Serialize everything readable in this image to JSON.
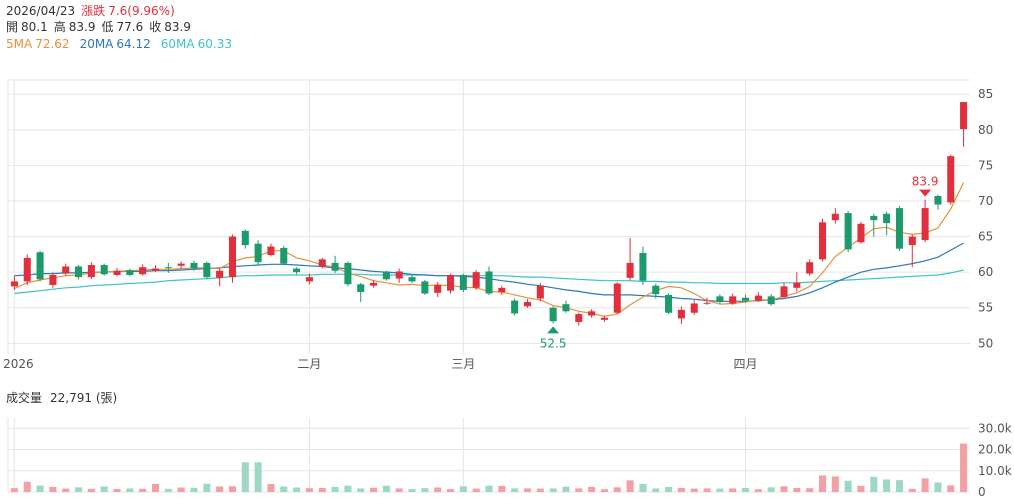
{
  "colors": {
    "up": "#e0303e",
    "down": "#1d9a6c",
    "ma5": "#e8913a",
    "ma20": "#2f78b7",
    "ma60": "#3cc3c8",
    "vol_up": "#f2a0a4",
    "vol_down": "#9ed8c4",
    "grid": "#e6e6e6",
    "muted": "#999999"
  },
  "header": {
    "date": "2026/04/23",
    "change_label": "漲跌",
    "change_value": "7.6(9.96%)",
    "open_label": "開",
    "open_value": "80.1",
    "high_label": "高",
    "high_value": "83.9",
    "low_label": "低",
    "low_value": "77.6",
    "close_label": "收",
    "close_value": "83.9",
    "ma5_label": "5MA",
    "ma5_value": "72.62",
    "ma20_label": "20MA",
    "ma20_value": "64.12",
    "ma60_label": "60MA",
    "ma60_value": "60.33"
  },
  "volume_header": {
    "label": "成交量",
    "value": "22,791 (張)"
  },
  "chart_data": {
    "type": "candlestick",
    "ylim": [
      48.5,
      87
    ],
    "price_ticks": [
      50,
      55,
      60,
      65,
      70,
      75,
      80,
      85
    ],
    "x_labels": [
      {
        "index": 0,
        "text": "2026"
      },
      {
        "index": 23,
        "text": "二月"
      },
      {
        "index": 35,
        "text": "三月"
      },
      {
        "index": 57,
        "text": "四月"
      }
    ],
    "max_marker": {
      "index": 71,
      "value": "83.9"
    },
    "min_marker": {
      "index": 42,
      "value": "52.5"
    },
    "candles": [
      [
        58,
        58.7,
        57.5,
        59.5
      ],
      [
        58.7,
        62,
        58.2,
        62.5
      ],
      [
        62.8,
        59,
        58.7,
        63
      ],
      [
        58.2,
        59.6,
        57.8,
        60
      ],
      [
        59.8,
        60.8,
        59.5,
        61.2
      ],
      [
        60.8,
        59.3,
        59,
        61
      ],
      [
        59.3,
        61,
        59,
        61.4
      ],
      [
        61,
        59.7,
        59.5,
        61.2
      ],
      [
        59.6,
        60.2,
        59.4,
        60.6
      ],
      [
        60.3,
        59.6,
        59.4,
        60.5
      ],
      [
        59.7,
        60.7,
        59.5,
        61.1
      ],
      [
        60.2,
        60.5,
        60,
        61
      ],
      [
        60.7,
        60.6,
        59.9,
        61.3
      ],
      [
        60.9,
        61.2,
        60.5,
        61.5
      ],
      [
        61.3,
        60.5,
        60.2,
        61.6
      ],
      [
        61.3,
        59.3,
        59,
        61.5
      ],
      [
        59.2,
        60.2,
        58,
        60.6
      ],
      [
        59.3,
        65,
        58.5,
        65.3
      ],
      [
        65.8,
        63.8,
        63.3,
        66
      ],
      [
        64,
        61.4,
        61,
        64.5
      ],
      [
        62.4,
        63.6,
        62.2,
        64
      ],
      [
        63.4,
        61.2,
        61,
        63.7
      ],
      [
        60.5,
        60,
        59.7,
        60.7
      ],
      [
        58.7,
        59.3,
        58.3,
        59.8
      ],
      [
        60.8,
        61.8,
        60.5,
        62
      ],
      [
        61.3,
        60.2,
        59.9,
        62.3
      ],
      [
        61.3,
        58.3,
        58,
        61.5
      ],
      [
        58.3,
        57.2,
        55.8,
        58.5
      ],
      [
        58.1,
        58.5,
        57.8,
        58.9
      ],
      [
        60.1,
        59,
        58.8,
        60.2
      ],
      [
        59.1,
        60.1,
        58.5,
        60.5
      ],
      [
        59.3,
        58.7,
        58.5,
        59.6
      ],
      [
        58.7,
        57,
        56.8,
        58.9
      ],
      [
        57.1,
        58.2,
        56.5,
        58.6
      ],
      [
        57.4,
        59.6,
        57,
        59.8
      ],
      [
        59.6,
        57.5,
        57.2,
        59.8
      ],
      [
        57.8,
        60,
        57.5,
        60.3
      ],
      [
        60.1,
        57,
        56.8,
        60.8
      ],
      [
        57.2,
        57.8,
        56.8,
        58.1
      ],
      [
        56,
        54.2,
        53.9,
        56.3
      ],
      [
        55.2,
        55.8,
        55,
        56.2
      ],
      [
        56.3,
        58.1,
        55.9,
        58.5
      ],
      [
        55,
        53.1,
        52.8,
        55.2
      ],
      [
        55.5,
        54.5,
        54.3,
        56
      ],
      [
        53,
        54.1,
        52.5,
        54.3
      ],
      [
        53.9,
        54.5,
        53.6,
        54.8
      ],
      [
        53.3,
        53.6,
        53,
        53.9
      ],
      [
        54.3,
        58.4,
        54.1,
        58.6
      ],
      [
        59.2,
        61.3,
        58.8,
        64.8
      ],
      [
        62.7,
        58.8,
        58.2,
        63.6
      ],
      [
        58.1,
        56.9,
        56.3,
        58.4
      ],
      [
        56.8,
        54.3,
        54.1,
        57
      ],
      [
        53.5,
        54.7,
        52.7,
        55.2
      ],
      [
        54.3,
        55.6,
        54,
        56.1
      ],
      [
        55.6,
        55.7,
        55.4,
        56.4
      ],
      [
        56.6,
        55.8,
        55.6,
        56.9
      ],
      [
        55.6,
        56.6,
        55.4,
        57
      ],
      [
        56.4,
        56,
        55.7,
        56.8
      ],
      [
        56,
        56.7,
        55.8,
        57.2
      ],
      [
        56.6,
        55.5,
        55.3,
        56.9
      ],
      [
        56.5,
        58,
        56.3,
        58.5
      ],
      [
        57.8,
        58.5,
        57.3,
        60
      ],
      [
        59.8,
        61.4,
        59.5,
        61.8
      ],
      [
        61.8,
        67,
        61.5,
        67.5
      ],
      [
        67.3,
        68.2,
        66.8,
        69
      ],
      [
        68.3,
        63.2,
        62.8,
        68.6
      ],
      [
        64.2,
        66.8,
        64,
        67.1
      ],
      [
        67.9,
        67.3,
        65,
        68.2
      ],
      [
        68.2,
        66.9,
        65.2,
        68.5
      ],
      [
        69,
        63.3,
        63,
        69.3
      ],
      [
        63.8,
        65,
        60.7,
        65.3
      ],
      [
        64.5,
        69,
        64.2,
        70.2
      ],
      [
        70.7,
        69.5,
        68.8,
        70.9
      ],
      [
        69.8,
        76.3,
        69.5,
        76.5
      ],
      [
        80.1,
        83.9,
        77.6,
        83.9
      ]
    ],
    "ma5": [
      57.7,
      58.5,
      58.9,
      59.2,
      59.5,
      59.6,
      59.9,
      60.0,
      60.1,
      60.2,
      60.3,
      60.4,
      60.4,
      60.5,
      60.6,
      60.6,
      60.5,
      61.5,
      62.0,
      62.2,
      63.0,
      63.0,
      62.0,
      61.6,
      61.0,
      60.7,
      59.9,
      59.4,
      58.8,
      58.5,
      58.2,
      58.3,
      58.1,
      58.2,
      58.1,
      57.9,
      57.8,
      57.3,
      57.2,
      56.8,
      56.4,
      56.1,
      55.3,
      55.0,
      54.5,
      54.2,
      53.8,
      54.1,
      55.4,
      56.5,
      57.4,
      58.0,
      57.8,
      57.0,
      56.0,
      55.5,
      55.6,
      55.8,
      56.1,
      56.1,
      56.6,
      57.1,
      58.0,
      59.9,
      62.2,
      63.5,
      64.8,
      66.1,
      66.3,
      65.6,
      65.3,
      65.5,
      66.2,
      68.9,
      72.6
    ],
    "ma20": [
      59.5,
      59.6,
      59.8,
      59.8,
      59.9,
      59.9,
      60.0,
      60.0,
      60.1,
      60.1,
      60.1,
      60.2,
      60.2,
      60.3,
      60.4,
      60.5,
      60.6,
      60.8,
      60.9,
      61.0,
      61.1,
      61.1,
      61.0,
      60.9,
      60.8,
      60.6,
      60.5,
      60.3,
      60.1,
      60.0,
      59.9,
      59.7,
      59.6,
      59.5,
      59.5,
      59.4,
      59.3,
      59.1,
      58.8,
      58.6,
      58.3,
      58.1,
      57.8,
      57.5,
      57.3,
      57.0,
      56.8,
      56.8,
      56.8,
      56.7,
      56.6,
      56.5,
      56.3,
      56.2,
      56.0,
      55.9,
      55.9,
      55.9,
      56.0,
      56.1,
      56.3,
      56.6,
      57.1,
      57.8,
      58.6,
      59.3,
      60.0,
      60.4,
      60.6,
      60.9,
      61.2,
      61.6,
      62.1,
      63.1,
      64.1
    ],
    "ma60": [
      57.0,
      57.2,
      57.4,
      57.6,
      57.8,
      57.9,
      58.1,
      58.2,
      58.3,
      58.4,
      58.5,
      58.6,
      58.8,
      58.9,
      59.0,
      59.1,
      59.2,
      59.4,
      59.5,
      59.5,
      59.6,
      59.6,
      59.6,
      59.6,
      59.7,
      59.7,
      59.7,
      59.7,
      59.6,
      59.6,
      59.6,
      59.6,
      59.6,
      59.5,
      59.5,
      59.5,
      59.5,
      59.5,
      59.5,
      59.4,
      59.3,
      59.3,
      59.2,
      59.1,
      59.0,
      58.9,
      58.8,
      58.8,
      58.8,
      58.7,
      58.7,
      58.6,
      58.6,
      58.5,
      58.5,
      58.4,
      58.4,
      58.4,
      58.4,
      58.4,
      58.5,
      58.5,
      58.6,
      58.7,
      58.8,
      58.9,
      59.0,
      59.1,
      59.2,
      59.3,
      59.4,
      59.5,
      59.6,
      59.9,
      60.3
    ],
    "volume": {
      "ylim": [
        0,
        32000
      ],
      "ticks": [
        {
          "v": 0,
          "t": "0"
        },
        {
          "v": 10000,
          "t": "10.0k"
        },
        {
          "v": 20000,
          "t": "20.0k"
        },
        {
          "v": 30000,
          "t": "30.0k"
        }
      ],
      "values": [
        1800,
        4800,
        3000,
        2400,
        1600,
        2200,
        1500,
        2600,
        1400,
        1700,
        1500,
        3800,
        1500,
        2100,
        2000,
        3900,
        2600,
        2700,
        14000,
        14000,
        3800,
        2600,
        2100,
        1800,
        1900,
        2400,
        3000,
        1700,
        2000,
        3000,
        1700,
        1400,
        1800,
        2100,
        1400,
        2700,
        1600,
        3000,
        2900,
        1700,
        1700,
        1600,
        1700,
        2500,
        1700,
        2400,
        1300,
        2200,
        5500,
        3800,
        1700,
        2400,
        1900,
        1600,
        1700,
        1600,
        1700,
        1900,
        1300,
        2200,
        2700,
        1900,
        1800,
        7800,
        7300,
        5300,
        2900,
        7100,
        5900,
        5600,
        1500,
        6400,
        4500,
        3100,
        22791
      ]
    }
  }
}
